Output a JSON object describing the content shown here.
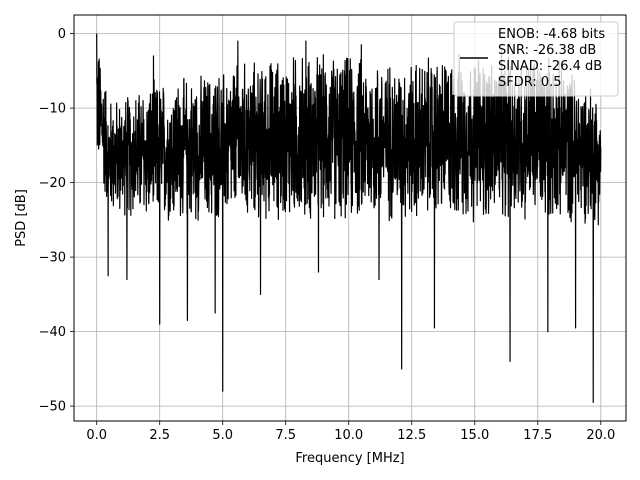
{
  "chart_data": {
    "type": "line",
    "title": "",
    "xlabel": "Frequency [MHz]",
    "ylabel": "PSD [dB]",
    "xlim": [
      -0.9,
      21.0
    ],
    "ylim": [
      -52.0,
      2.5
    ],
    "x_ticks": [
      0.0,
      2.5,
      5.0,
      7.5,
      10.0,
      12.5,
      15.0,
      17.5,
      20.0
    ],
    "x_tick_labels": [
      "0.0",
      "2.5",
      "5.0",
      "7.5",
      "10.0",
      "12.5",
      "15.0",
      "17.5",
      "20.0"
    ],
    "y_ticks": [
      0,
      -10,
      -20,
      -30,
      -40,
      -50
    ],
    "y_tick_labels": [
      "0",
      "−10",
      "−20",
      "−30",
      "−40",
      "−50"
    ],
    "grid": true,
    "legend_placement": "top-right",
    "series": [
      {
        "color": "#000000",
        "x_range": [
          0.0,
          20.0
        ],
        "band_envelope": {
          "x": [
            0.0,
            0.5,
            1.0,
            2.0,
            4.0,
            6.0,
            8.0,
            10.0,
            12.0,
            14.0,
            16.0,
            18.0,
            20.0
          ],
          "upper": [
            0.0,
            -8.0,
            -8.0,
            -6.0,
            -5.0,
            -3.0,
            -2.0,
            -2.0,
            -3.0,
            -2.0,
            -2.0,
            -2.0,
            -7.0
          ],
          "lower": [
            -18.0,
            -25.0,
            -25.0,
            -26.0,
            -26.0,
            -26.0,
            -26.0,
            -26.0,
            -26.0,
            -26.0,
            -26.0,
            -26.0,
            -26.0
          ]
        },
        "peaks": [
          {
            "x": 0.0,
            "y": 0.0
          },
          {
            "x": 2.25,
            "y": -3.0
          },
          {
            "x": 5.6,
            "y": -1.0
          },
          {
            "x": 8.3,
            "y": -1.0
          },
          {
            "x": 10.5,
            "y": -1.5
          }
        ],
        "dips": [
          {
            "x": 0.45,
            "y": -32.5
          },
          {
            "x": 1.2,
            "y": -33.0
          },
          {
            "x": 2.5,
            "y": -39.0
          },
          {
            "x": 3.6,
            "y": -38.5
          },
          {
            "x": 4.7,
            "y": -37.5
          },
          {
            "x": 5.0,
            "y": -48.0
          },
          {
            "x": 6.5,
            "y": -35.0
          },
          {
            "x": 8.8,
            "y": -32.0
          },
          {
            "x": 11.2,
            "y": -33.0
          },
          {
            "x": 12.1,
            "y": -45.0
          },
          {
            "x": 13.4,
            "y": -39.5
          },
          {
            "x": 16.4,
            "y": -44.0
          },
          {
            "x": 17.9,
            "y": -40.0
          },
          {
            "x": 19.0,
            "y": -39.5
          },
          {
            "x": 19.7,
            "y": -49.5
          }
        ]
      }
    ]
  },
  "legend": {
    "lines": [
      "ENOB: -4.68 bits",
      "SNR: -26.38 dB",
      "SINAD: -26.4 dB",
      "SFDR: 0.5"
    ]
  }
}
